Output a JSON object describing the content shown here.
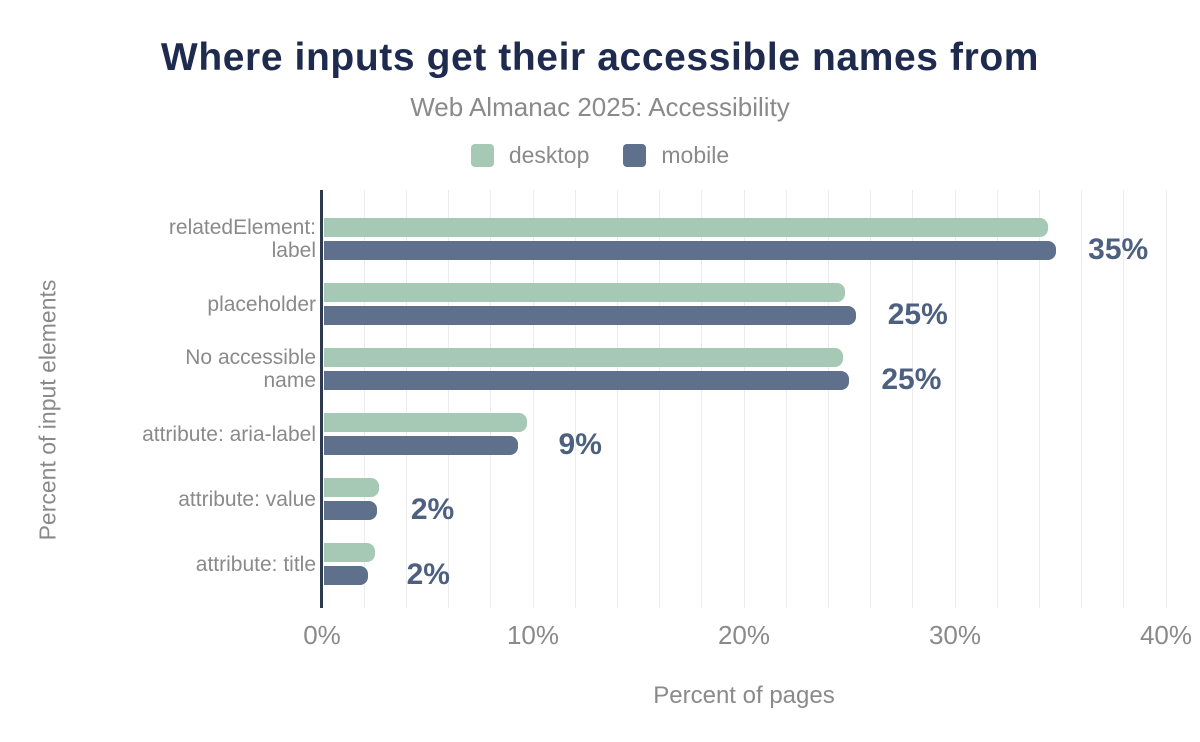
{
  "title": "Where inputs get their accessible names from",
  "subtitle": "Web Almanac 2025: Accessibility",
  "legend": [
    {
      "label": "desktop",
      "color": "#a5c9b5"
    },
    {
      "label": "mobile",
      "color": "#5f708d"
    }
  ],
  "colors": {
    "title": "#1e2b4e",
    "muted_text": "#8a8a8a",
    "annotation": "#4d6080",
    "axis_line": "#2e3a4e",
    "gridline": "#ececec",
    "desktop_bar": "#a5c9b5",
    "mobile_bar": "#5f708d",
    "background": "#ffffff"
  },
  "chart_data": {
    "type": "bar",
    "orientation": "horizontal",
    "title": "Where inputs get their accessible names from",
    "subtitle": "Web Almanac 2025: Accessibility",
    "xlabel": "Percent of pages",
    "ylabel": "Percent of input elements",
    "xlim": [
      0,
      40
    ],
    "grid_step_percent": 2,
    "legend_position": "top",
    "grid": true,
    "x_ticks": [
      {
        "value": 0,
        "label": "0%"
      },
      {
        "value": 10,
        "label": "10%"
      },
      {
        "value": 20,
        "label": "20%"
      },
      {
        "value": 30,
        "label": "30%"
      },
      {
        "value": 40,
        "label": "40%"
      }
    ],
    "categories": [
      "relatedElement: label",
      "placeholder",
      "No accessible name",
      "attribute: aria-label",
      "attribute: value",
      "attribute: title"
    ],
    "category_lines": [
      [
        "relatedElement:",
        "label"
      ],
      [
        "placeholder"
      ],
      [
        "No accessible",
        "name"
      ],
      [
        "attribute: aria-label"
      ],
      [
        "attribute: value"
      ],
      [
        "attribute: title"
      ]
    ],
    "series": [
      {
        "name": "desktop",
        "color": "#a5c9b5",
        "values": [
          34.3,
          24.7,
          24.6,
          9.6,
          2.6,
          2.4
        ]
      },
      {
        "name": "mobile",
        "color": "#5f708d",
        "values": [
          34.7,
          25.2,
          24.9,
          9.2,
          2.5,
          2.1
        ]
      }
    ],
    "annotations": [
      "35%",
      "25%",
      "25%",
      "9%",
      "2%",
      "2%"
    ]
  }
}
